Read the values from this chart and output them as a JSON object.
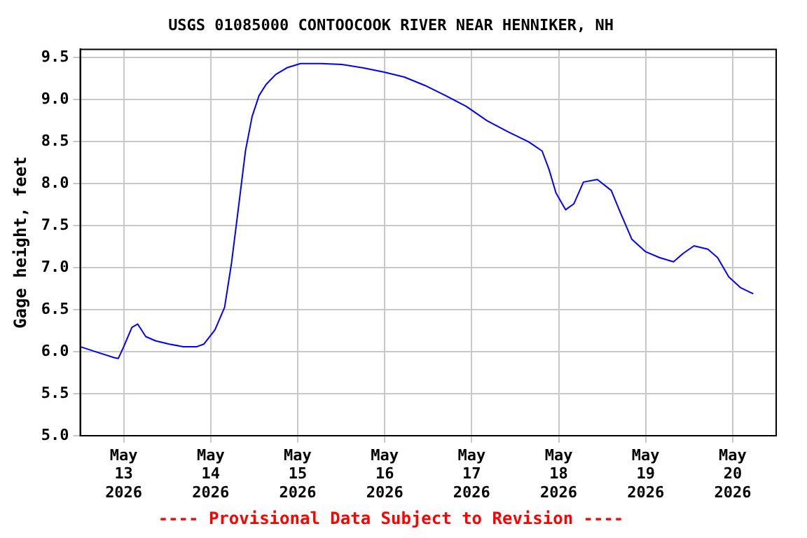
{
  "chart_data": {
    "type": "line",
    "title": "USGS 01085000 CONTOOCOOK RIVER NEAR HENNIKER, NH",
    "ylabel": "Gage height, feet",
    "annotations": [
      "---- Provisional Data Subject to Revision ----"
    ],
    "x": [
      "2026-05-12T12:00",
      "2026-05-12T15:30",
      "2026-05-12T21:20",
      "2026-05-12T22:30",
      "2026-05-13T00:00",
      "2026-05-13T02:15",
      "2026-05-13T03:50",
      "2026-05-13T06:05",
      "2026-05-13T08:45",
      "2026-05-13T12:35",
      "2026-05-13T16:25",
      "2026-05-13T20:10",
      "2026-05-13T22:05",
      "2026-05-14T01:10",
      "2026-05-14T03:50",
      "2026-05-14T05:45",
      "2026-05-14T07:40",
      "2026-05-14T09:35",
      "2026-05-14T11:25",
      "2026-05-14T13:20",
      "2026-05-14T15:15",
      "2026-05-14T17:55",
      "2026-05-14T21:00",
      "2026-05-15T00:45",
      "2026-05-15T06:30",
      "2026-05-15T12:10",
      "2026-05-15T17:55",
      "2026-05-15T23:40",
      "2026-05-16T05:25",
      "2026-05-16T11:05",
      "2026-05-16T16:45",
      "2026-05-16T22:30",
      "2026-05-17T04:15",
      "2026-05-17T09:55",
      "2026-05-17T15:40",
      "2026-05-17T19:25",
      "2026-05-17T21:20",
      "2026-05-17T23:15",
      "2026-05-18T01:55",
      "2026-05-18T04:10",
      "2026-05-18T06:50",
      "2026-05-18T10:40",
      "2026-05-18T14:30",
      "2026-05-18T17:10",
      "2026-05-18T20:10",
      "2026-05-19T00:00",
      "2026-05-19T03:50",
      "2026-05-19T07:40",
      "2026-05-19T10:20",
      "2026-05-19T13:20",
      "2026-05-19T17:10",
      "2026-05-19T19:50",
      "2026-05-19T22:55",
      "2026-05-20T02:15",
      "2026-05-20T05:40"
    ],
    "series": [
      {
        "color": "#0000ff",
        "values": [
          6.06,
          6.01,
          5.93,
          5.92,
          6.06,
          6.29,
          6.33,
          6.18,
          6.13,
          6.09,
          6.06,
          6.06,
          6.09,
          6.26,
          6.53,
          7.06,
          7.72,
          8.39,
          8.8,
          9.05,
          9.18,
          9.3,
          9.38,
          9.43,
          9.43,
          9.42,
          9.38,
          9.33,
          9.27,
          9.17,
          9.05,
          8.92,
          8.75,
          8.62,
          8.5,
          8.39,
          8.17,
          7.89,
          7.69,
          7.76,
          8.02,
          8.05,
          7.92,
          7.64,
          7.34,
          7.19,
          7.12,
          7.07,
          7.17,
          7.26,
          7.22,
          7.12,
          6.89,
          6.76,
          6.69
        ]
      }
    ],
    "xlim": [
      "2026-05-12T12:00",
      "2026-05-20T12:00"
    ],
    "xticks": [
      {
        "value": "2026-05-13",
        "label": "May 13 2026"
      },
      {
        "value": "2026-05-14",
        "label": "May 14 2026"
      },
      {
        "value": "2026-05-15",
        "label": "May 15 2026"
      },
      {
        "value": "2026-05-16",
        "label": "May 16 2026"
      },
      {
        "value": "2026-05-17",
        "label": "May 17 2026"
      },
      {
        "value": "2026-05-18",
        "label": "May 18 2026"
      },
      {
        "value": "2026-05-19",
        "label": "May 19 2026"
      },
      {
        "value": "2026-05-20",
        "label": "May 20 2026"
      }
    ],
    "ylim": [
      5.0,
      9.6
    ],
    "yticks": [
      {
        "value": 5,
        "label": "5.0"
      },
      5.5,
      {
        "value": 6,
        "label": "6.0"
      },
      6.5,
      {
        "value": 7,
        "label": "7.0"
      },
      7.5,
      {
        "value": 8,
        "label": "8.0"
      },
      8.5,
      {
        "value": 9,
        "label": "9.0"
      },
      9.5
    ],
    "grid": true,
    "legend": false,
    "marker": "none",
    "line_style": "solid"
  }
}
